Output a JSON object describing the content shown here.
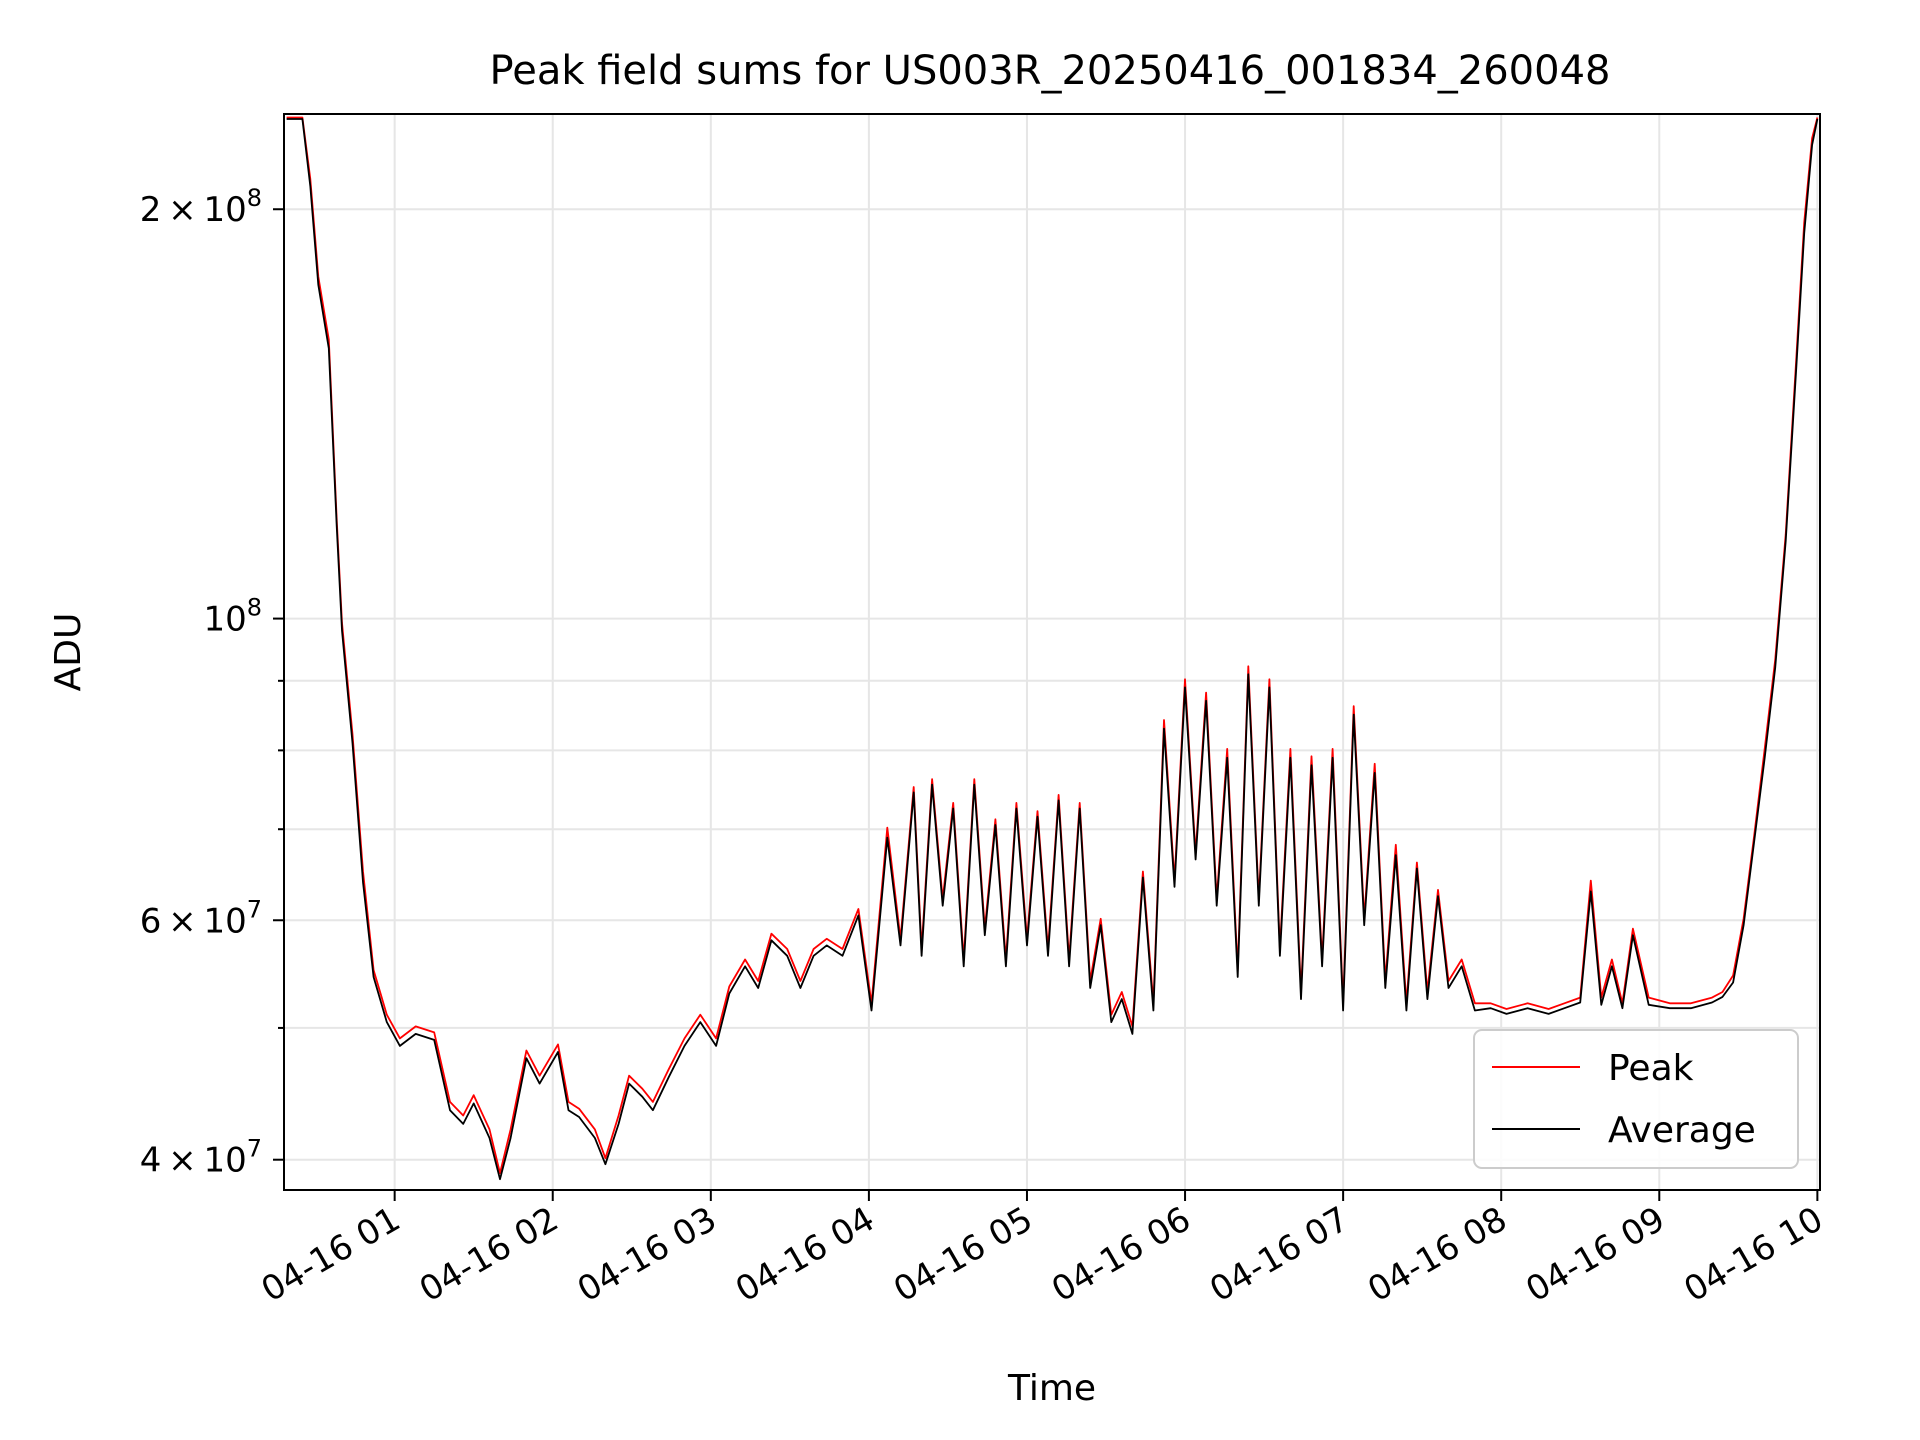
{
  "chart_data": {
    "type": "line",
    "title": "Peak field sums for US003R_20250416_001834_260048",
    "xlabel": "Time",
    "ylabel": "ADU",
    "yscale": "log",
    "ylim": [
      38000000,
      235000000
    ],
    "xlim": [
      "2025-04-16T00:18",
      "2025-04-16T10:01"
    ],
    "grid": true,
    "legend_position": "lower-right",
    "x_tick_labels": [
      "04-16 01",
      "04-16 02",
      "04-16 03",
      "04-16 04",
      "04-16 05",
      "04-16 06",
      "04-16 07",
      "04-16 08",
      "04-16 09",
      "04-16 10"
    ],
    "x_ticks": [
      "2025-04-16T01:00",
      "2025-04-16T02:00",
      "2025-04-16T03:00",
      "2025-04-16T04:00",
      "2025-04-16T05:00",
      "2025-04-16T06:00",
      "2025-04-16T07:00",
      "2025-04-16T08:00",
      "2025-04-16T09:00",
      "2025-04-16T10:00"
    ],
    "y_ticks": [
      {
        "value": 40000000,
        "mantissa": "4",
        "exp": "7"
      },
      {
        "value": 60000000,
        "mantissa": "6",
        "exp": "7"
      },
      {
        "value": 100000000,
        "mantissa": "",
        "exp": "8"
      },
      {
        "value": 200000000,
        "mantissa": "2",
        "exp": "8"
      }
    ],
    "y_minor_ticks": [
      50000000,
      70000000,
      80000000,
      90000000
    ],
    "series": [
      {
        "name": "Peak",
        "color": "#ff0000",
        "x": [
          "2025-04-16T00:19",
          "2025-04-16T00:25",
          "2025-04-16T00:28",
          "2025-04-16T00:31",
          "2025-04-16T00:35",
          "2025-04-16T00:38",
          "2025-04-16T00:40",
          "2025-04-16T00:44",
          "2025-04-16T00:48",
          "2025-04-16T00:52",
          "2025-04-16T00:57",
          "2025-04-16T01:02",
          "2025-04-16T01:08",
          "2025-04-16T01:15",
          "2025-04-16T01:21",
          "2025-04-16T01:26",
          "2025-04-16T01:30",
          "2025-04-16T01:36",
          "2025-04-16T01:40",
          "2025-04-16T01:44",
          "2025-04-16T01:50",
          "2025-04-16T01:55",
          "2025-04-16T02:02",
          "2025-04-16T02:06",
          "2025-04-16T02:10",
          "2025-04-16T02:16",
          "2025-04-16T02:20",
          "2025-04-16T02:25",
          "2025-04-16T02:29",
          "2025-04-16T02:34",
          "2025-04-16T02:38",
          "2025-04-16T02:44",
          "2025-04-16T02:50",
          "2025-04-16T02:56",
          "2025-04-16T03:02",
          "2025-04-16T03:07",
          "2025-04-16T03:13",
          "2025-04-16T03:18",
          "2025-04-16T03:23",
          "2025-04-16T03:29",
          "2025-04-16T03:34",
          "2025-04-16T03:39",
          "2025-04-16T03:44",
          "2025-04-16T03:50",
          "2025-04-16T03:56",
          "2025-04-16T04:01",
          "2025-04-16T04:07",
          "2025-04-16T04:12",
          "2025-04-16T04:17",
          "2025-04-16T04:20",
          "2025-04-16T04:24",
          "2025-04-16T04:28",
          "2025-04-16T04:32",
          "2025-04-16T04:36",
          "2025-04-16T04:40",
          "2025-04-16T04:44",
          "2025-04-16T04:48",
          "2025-04-16T04:52",
          "2025-04-16T04:56",
          "2025-04-16T05:00",
          "2025-04-16T05:04",
          "2025-04-16T05:08",
          "2025-04-16T05:12",
          "2025-04-16T05:16",
          "2025-04-16T05:20",
          "2025-04-16T05:24",
          "2025-04-16T05:28",
          "2025-04-16T05:32",
          "2025-04-16T05:36",
          "2025-04-16T05:40",
          "2025-04-16T05:44",
          "2025-04-16T05:48",
          "2025-04-16T05:52",
          "2025-04-16T05:56",
          "2025-04-16T06:00",
          "2025-04-16T06:04",
          "2025-04-16T06:08",
          "2025-04-16T06:12",
          "2025-04-16T06:16",
          "2025-04-16T06:20",
          "2025-04-16T06:24",
          "2025-04-16T06:28",
          "2025-04-16T06:32",
          "2025-04-16T06:36",
          "2025-04-16T06:40",
          "2025-04-16T06:44",
          "2025-04-16T06:48",
          "2025-04-16T06:52",
          "2025-04-16T06:56",
          "2025-04-16T07:00",
          "2025-04-16T07:04",
          "2025-04-16T07:08",
          "2025-04-16T07:12",
          "2025-04-16T07:16",
          "2025-04-16T07:20",
          "2025-04-16T07:24",
          "2025-04-16T07:28",
          "2025-04-16T07:32",
          "2025-04-16T07:36",
          "2025-04-16T07:40",
          "2025-04-16T07:45",
          "2025-04-16T07:50",
          "2025-04-16T07:56",
          "2025-04-16T08:02",
          "2025-04-16T08:10",
          "2025-04-16T08:18",
          "2025-04-16T08:24",
          "2025-04-16T08:30",
          "2025-04-16T08:34",
          "2025-04-16T08:38",
          "2025-04-16T08:42",
          "2025-04-16T08:46",
          "2025-04-16T08:50",
          "2025-04-16T08:56",
          "2025-04-16T09:04",
          "2025-04-16T09:12",
          "2025-04-16T09:20",
          "2025-04-16T09:24",
          "2025-04-16T09:28",
          "2025-04-16T09:32",
          "2025-04-16T09:36",
          "2025-04-16T09:40",
          "2025-04-16T09:44",
          "2025-04-16T09:48",
          "2025-04-16T09:52",
          "2025-04-16T09:55",
          "2025-04-16T09:58",
          "2025-04-16T10:00"
        ],
        "values": [
          233000000,
          233000000,
          210000000,
          178000000,
          160000000,
          118000000,
          99000000,
          82000000,
          65000000,
          55000000,
          51000000,
          49000000,
          50000000,
          49500000,
          44000000,
          43000000,
          44500000,
          42000000,
          39000000,
          42000000,
          48000000,
          46000000,
          48500000,
          44000000,
          43500000,
          42000000,
          40000000,
          43000000,
          46000000,
          45000000,
          44000000,
          46500000,
          49000000,
          51000000,
          49000000,
          53500000,
          56000000,
          54000000,
          58500000,
          57000000,
          54000000,
          57000000,
          58000000,
          57000000,
          61000000,
          52000000,
          70000000,
          58000000,
          75000000,
          57000000,
          76000000,
          62000000,
          73000000,
          56000000,
          76000000,
          59000000,
          71000000,
          56000000,
          73000000,
          58000000,
          72000000,
          57000000,
          74000000,
          56000000,
          73000000,
          54000000,
          60000000,
          51000000,
          53000000,
          50000000,
          65000000,
          52000000,
          84000000,
          64000000,
          90000000,
          67000000,
          88000000,
          62000000,
          80000000,
          55000000,
          92000000,
          62000000,
          90000000,
          57000000,
          80000000,
          53000000,
          79000000,
          56000000,
          80000000,
          52000000,
          86000000,
          60000000,
          78000000,
          54000000,
          68000000,
          52000000,
          66000000,
          53000000,
          63000000,
          54000000,
          56000000,
          52000000,
          52000000,
          51500000,
          52000000,
          51500000,
          52000000,
          52500000,
          64000000,
          52500000,
          56000000,
          52000000,
          59000000,
          52500000,
          52000000,
          52000000,
          52500000,
          53000000,
          54500000,
          60000000,
          69000000,
          80000000,
          93000000,
          115000000,
          155000000,
          195000000,
          225000000,
          233000000
        ]
      },
      {
        "name": "Average",
        "color": "#000000",
        "x": [
          "2025-04-16T00:19",
          "2025-04-16T00:25",
          "2025-04-16T00:28",
          "2025-04-16T00:31",
          "2025-04-16T00:35",
          "2025-04-16T00:38",
          "2025-04-16T00:40",
          "2025-04-16T00:44",
          "2025-04-16T00:48",
          "2025-04-16T00:52",
          "2025-04-16T00:57",
          "2025-04-16T01:02",
          "2025-04-16T01:08",
          "2025-04-16T01:15",
          "2025-04-16T01:21",
          "2025-04-16T01:26",
          "2025-04-16T01:30",
          "2025-04-16T01:36",
          "2025-04-16T01:40",
          "2025-04-16T01:44",
          "2025-04-16T01:50",
          "2025-04-16T01:55",
          "2025-04-16T02:02",
          "2025-04-16T02:06",
          "2025-04-16T02:10",
          "2025-04-16T02:16",
          "2025-04-16T02:20",
          "2025-04-16T02:25",
          "2025-04-16T02:29",
          "2025-04-16T02:34",
          "2025-04-16T02:38",
          "2025-04-16T02:44",
          "2025-04-16T02:50",
          "2025-04-16T02:56",
          "2025-04-16T03:02",
          "2025-04-16T03:07",
          "2025-04-16T03:13",
          "2025-04-16T03:18",
          "2025-04-16T03:23",
          "2025-04-16T03:29",
          "2025-04-16T03:34",
          "2025-04-16T03:39",
          "2025-04-16T03:44",
          "2025-04-16T03:50",
          "2025-04-16T03:56",
          "2025-04-16T04:01",
          "2025-04-16T04:07",
          "2025-04-16T04:12",
          "2025-04-16T04:17",
          "2025-04-16T04:20",
          "2025-04-16T04:24",
          "2025-04-16T04:28",
          "2025-04-16T04:32",
          "2025-04-16T04:36",
          "2025-04-16T04:40",
          "2025-04-16T04:44",
          "2025-04-16T04:48",
          "2025-04-16T04:52",
          "2025-04-16T04:56",
          "2025-04-16T05:00",
          "2025-04-16T05:04",
          "2025-04-16T05:08",
          "2025-04-16T05:12",
          "2025-04-16T05:16",
          "2025-04-16T05:20",
          "2025-04-16T05:24",
          "2025-04-16T05:28",
          "2025-04-16T05:32",
          "2025-04-16T05:36",
          "2025-04-16T05:40",
          "2025-04-16T05:44",
          "2025-04-16T05:48",
          "2025-04-16T05:52",
          "2025-04-16T05:56",
          "2025-04-16T06:00",
          "2025-04-16T06:04",
          "2025-04-16T06:08",
          "2025-04-16T06:12",
          "2025-04-16T06:16",
          "2025-04-16T06:20",
          "2025-04-16T06:24",
          "2025-04-16T06:28",
          "2025-04-16T06:32",
          "2025-04-16T06:36",
          "2025-04-16T06:40",
          "2025-04-16T06:44",
          "2025-04-16T06:48",
          "2025-04-16T06:52",
          "2025-04-16T06:56",
          "2025-04-16T07:00",
          "2025-04-16T07:04",
          "2025-04-16T07:08",
          "2025-04-16T07:12",
          "2025-04-16T07:16",
          "2025-04-16T07:20",
          "2025-04-16T07:24",
          "2025-04-16T07:28",
          "2025-04-16T07:32",
          "2025-04-16T07:36",
          "2025-04-16T07:40",
          "2025-04-16T07:45",
          "2025-04-16T07:50",
          "2025-04-16T07:56",
          "2025-04-16T08:02",
          "2025-04-16T08:10",
          "2025-04-16T08:18",
          "2025-04-16T08:24",
          "2025-04-16T08:30",
          "2025-04-16T08:34",
          "2025-04-16T08:38",
          "2025-04-16T08:42",
          "2025-04-16T08:46",
          "2025-04-16T08:50",
          "2025-04-16T08:56",
          "2025-04-16T09:04",
          "2025-04-16T09:12",
          "2025-04-16T09:20",
          "2025-04-16T09:24",
          "2025-04-16T09:28",
          "2025-04-16T09:32",
          "2025-04-16T09:36",
          "2025-04-16T09:40",
          "2025-04-16T09:44",
          "2025-04-16T09:48",
          "2025-04-16T09:52",
          "2025-04-16T09:55",
          "2025-04-16T09:58",
          "2025-04-16T10:00"
        ],
        "values": [
          233000000,
          233000000,
          208000000,
          176000000,
          158000000,
          117000000,
          98000000,
          81000000,
          64000000,
          54500000,
          50500000,
          48500000,
          49500000,
          49000000,
          43500000,
          42500000,
          44000000,
          41500000,
          38700000,
          41500000,
          47500000,
          45500000,
          48000000,
          43500000,
          43000000,
          41500000,
          39700000,
          42500000,
          45500000,
          44500000,
          43500000,
          46000000,
          48500000,
          50500000,
          48500000,
          53000000,
          55500000,
          53500000,
          58000000,
          56500000,
          53500000,
          56500000,
          57500000,
          56500000,
          60500000,
          51500000,
          69000000,
          57500000,
          74500000,
          56500000,
          75500000,
          61500000,
          72500000,
          55500000,
          75500000,
          58500000,
          70500000,
          55500000,
          72500000,
          57500000,
          71500000,
          56500000,
          73500000,
          55500000,
          72500000,
          53500000,
          59500000,
          50500000,
          52500000,
          49500000,
          64500000,
          51500000,
          83000000,
          63500000,
          89000000,
          66500000,
          87000000,
          61500000,
          79000000,
          54500000,
          91000000,
          61500000,
          89000000,
          56500000,
          79000000,
          52500000,
          78000000,
          55500000,
          79000000,
          51500000,
          85000000,
          59500000,
          77000000,
          53500000,
          67000000,
          51500000,
          65500000,
          52500000,
          62500000,
          53500000,
          55500000,
          51500000,
          51700000,
          51200000,
          51700000,
          51200000,
          51700000,
          52200000,
          63000000,
          52000000,
          55500000,
          51700000,
          58500000,
          52000000,
          51700000,
          51700000,
          52200000,
          52700000,
          54000000,
          59500000,
          68500000,
          79000000,
          92000000,
          114000000,
          153000000,
          192000000,
          223000000,
          233000000
        ]
      }
    ]
  }
}
